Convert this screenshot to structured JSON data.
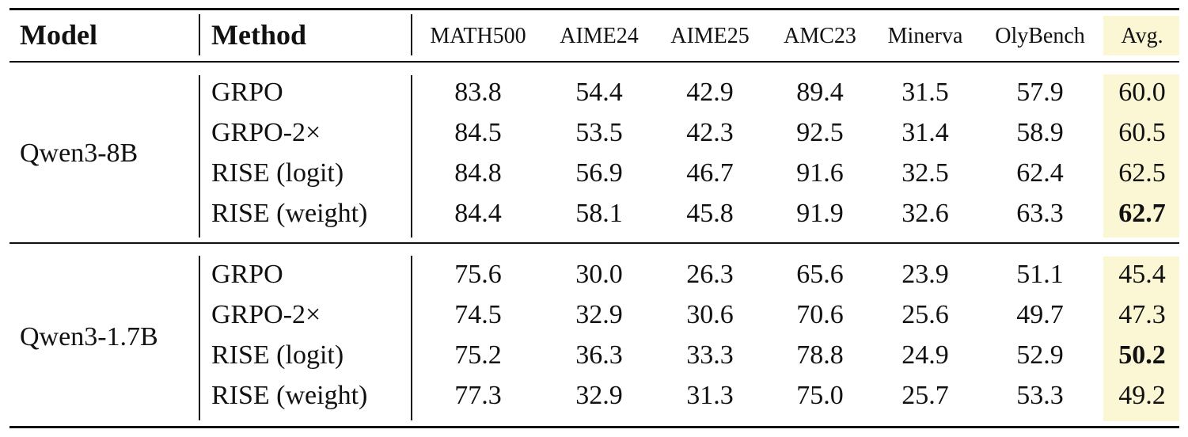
{
  "header": {
    "model_label": "Model",
    "method_label": "Method",
    "columns": [
      "MATH500",
      "AIME24",
      "AIME25",
      "AMC23",
      "Minerva",
      "OlyBench",
      "Avg."
    ]
  },
  "groups": [
    {
      "model": "Qwen3-8B",
      "rows": [
        {
          "method": "GRPO",
          "values": [
            "83.8",
            "54.4",
            "42.9",
            "89.4",
            "31.5",
            "57.9",
            "60.0"
          ],
          "best": false
        },
        {
          "method": "GRPO-2×",
          "values": [
            "84.5",
            "53.5",
            "42.3",
            "92.5",
            "31.4",
            "58.9",
            "60.5"
          ],
          "best": false
        },
        {
          "method": "RISE (logit)",
          "values": [
            "84.8",
            "56.9",
            "46.7",
            "91.6",
            "32.5",
            "62.4",
            "62.5"
          ],
          "best": false
        },
        {
          "method": "RISE (weight)",
          "values": [
            "84.4",
            "58.1",
            "45.8",
            "91.9",
            "32.6",
            "63.3",
            "62.7"
          ],
          "best": true
        }
      ]
    },
    {
      "model": "Qwen3-1.7B",
      "rows": [
        {
          "method": "GRPO",
          "values": [
            "75.6",
            "30.0",
            "26.3",
            "65.6",
            "23.9",
            "51.1",
            "45.4"
          ],
          "best": false
        },
        {
          "method": "GRPO-2×",
          "values": [
            "74.5",
            "32.9",
            "30.6",
            "70.6",
            "25.6",
            "49.7",
            "47.3"
          ],
          "best": false
        },
        {
          "method": "RISE (logit)",
          "values": [
            "75.2",
            "36.3",
            "33.3",
            "78.8",
            "24.9",
            "52.9",
            "50.2"
          ],
          "best": true
        },
        {
          "method": "RISE (weight)",
          "values": [
            "77.3",
            "32.9",
            "31.3",
            "75.0",
            "25.7",
            "53.3",
            "49.2"
          ],
          "best": false
        }
      ]
    }
  ],
  "colors": {
    "avg_highlight": "#fbf7d4",
    "text": "#111111"
  }
}
